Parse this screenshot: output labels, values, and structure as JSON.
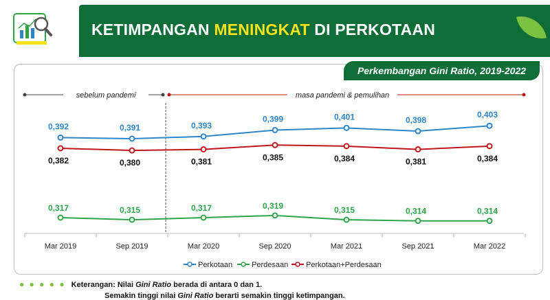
{
  "header": {
    "title_part1": "KETIMPANGAN ",
    "title_highlight": "MENINGKAT",
    "title_part2": " DI PERKOTAAN"
  },
  "subtitle": "Perkembangan Gini Ratio, 2019-2022",
  "periods": {
    "before": "sebelum pandemi",
    "after": "masa pandemi & pemulihan"
  },
  "note": {
    "label": "Keterangan:",
    "line1_a": "Nilai ",
    "line1_em": "Gini Ratio",
    "line1_b": " berada di antara 0 dan 1.",
    "line2_a": "Semakin tinggi nilai ",
    "line2_em": "Gini Ratio",
    "line2_b": " berarti semakin tinggi ketimpangan."
  },
  "colors": {
    "perkotaan": "#2e86c8",
    "perdesaan": "#2ea44a",
    "gabungan": "#c0161b",
    "header": "#0f6e37"
  },
  "chart_data": {
    "type": "line",
    "categories": [
      "Mar 2019",
      "Sep 2019",
      "Mar 2020",
      "Sep 2020",
      "Mar 2021",
      "Sep 2021",
      "Mar 2022"
    ],
    "series": [
      {
        "name": "Perkotaan",
        "values": [
          0.392,
          0.391,
          0.393,
          0.399,
          0.401,
          0.398,
          0.403
        ],
        "labels": [
          "0,392",
          "0,391",
          "0,393",
          "0,399",
          "0,401",
          "0,398",
          "0,403"
        ]
      },
      {
        "name": "Perdesaan",
        "values": [
          0.317,
          0.315,
          0.317,
          0.319,
          0.315,
          0.314,
          0.314
        ],
        "labels": [
          "0,317",
          "0,315",
          "0,317",
          "0,319",
          "0,315",
          "0,314",
          "0,314"
        ]
      },
      {
        "name": "Perkotaan+Perdesaan",
        "values": [
          0.382,
          0.38,
          0.381,
          0.385,
          0.384,
          0.381,
          0.384
        ],
        "labels": [
          "0,382",
          "0,380",
          "0,381",
          "0,385",
          "0,384",
          "0,381",
          "0,384"
        ]
      }
    ],
    "legend_position": "bottom-center",
    "grid": false
  }
}
